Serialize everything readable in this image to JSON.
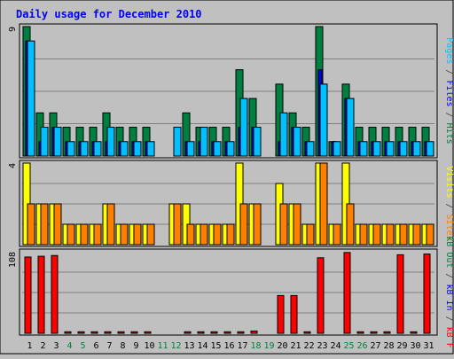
{
  "chart_data": {
    "type": "bar",
    "title": "Daily usage for December 2010",
    "categories": [
      "1",
      "2",
      "3",
      "4",
      "5",
      "6",
      "7",
      "8",
      "9",
      "10",
      "11",
      "12",
      "13",
      "14",
      "15",
      "16",
      "17",
      "18",
      "19",
      "20",
      "21",
      "22",
      "23",
      "24",
      "25",
      "26",
      "27",
      "28",
      "29",
      "30",
      "31"
    ],
    "weekend_days": [
      "4",
      "5",
      "11",
      "12",
      "18",
      "19",
      "25",
      "26"
    ],
    "panels": [
      {
        "id": "top",
        "max_label": "9",
        "ylim": [
          0,
          9
        ],
        "axis_labels": [
          {
            "text": "Pages",
            "color": "#00c0ff"
          },
          {
            "text": " / ",
            "color": "#404040"
          },
          {
            "text": "Files",
            "color": "#0000ff"
          },
          {
            "text": " / ",
            "color": "#404040"
          },
          {
            "text": "Hits",
            "color": "#008040"
          }
        ],
        "series": [
          {
            "name": "Hits",
            "color": "#008040",
            "values": [
              9,
              3,
              3,
              2,
              2,
              2,
              3,
              2,
              2,
              2,
              0,
              0,
              3,
              2,
              2,
              2,
              6,
              4,
              0,
              5,
              3,
              2,
              9,
              1,
              5,
              2,
              2,
              2,
              2,
              2,
              2
            ]
          },
          {
            "name": "Files",
            "color": "#0000ff",
            "values": [
              8,
              1,
              2,
              1,
              1,
              1,
              1,
              1,
              1,
              1,
              0,
              0,
              1,
              1,
              1,
              1,
              2,
              2,
              0,
              1,
              2,
              1,
              6,
              1,
              4,
              1,
              1,
              1,
              1,
              1,
              1
            ]
          },
          {
            "name": "Pages",
            "color": "#00c0ff",
            "values": [
              8,
              2,
              2,
              1,
              1,
              1,
              2,
              1,
              1,
              1,
              0,
              2,
              1,
              2,
              1,
              1,
              4,
              2,
              0,
              3,
              2,
              1,
              5,
              1,
              4,
              1,
              1,
              1,
              1,
              1,
              1
            ]
          }
        ]
      },
      {
        "id": "middle",
        "max_label": "4",
        "ylim": [
          0,
          4
        ],
        "axis_labels": [
          {
            "text": "Visits",
            "color": "#ffff00"
          },
          {
            "text": " / ",
            "color": "#404040"
          },
          {
            "text": "Sites",
            "color": "#ff8000"
          }
        ],
        "series": [
          {
            "name": "Visits",
            "color": "#ffff00",
            "values": [
              4,
              2,
              2,
              1,
              1,
              1,
              2,
              1,
              1,
              1,
              0,
              2,
              2,
              1,
              1,
              1,
              4,
              2,
              0,
              3,
              2,
              1,
              4,
              1,
              4,
              1,
              1,
              1,
              1,
              1,
              1
            ]
          },
          {
            "name": "Sites",
            "color": "#ff8000",
            "values": [
              2,
              2,
              2,
              1,
              1,
              1,
              2,
              1,
              1,
              1,
              0,
              2,
              1,
              1,
              1,
              1,
              2,
              2,
              0,
              2,
              2,
              1,
              4,
              1,
              2,
              1,
              1,
              1,
              1,
              1,
              1
            ]
          }
        ]
      },
      {
        "id": "bottom",
        "max_label": "108",
        "ylim": [
          0,
          108
        ],
        "axis_labels": [
          {
            "text": "kB Out",
            "color": "#008040"
          },
          {
            "text": " / ",
            "color": "#404040"
          },
          {
            "text": "kB In",
            "color": "#0000ff"
          },
          {
            "text": " / ",
            "color": "#404040"
          },
          {
            "text": "kB F",
            "color": "#ff0000"
          }
        ],
        "series": [
          {
            "name": "kB F",
            "color": "#ff0000",
            "values": [
              101,
              102,
              103,
              2,
              2,
              2,
              2,
              2,
              2,
              2,
              0,
              0,
              2,
              2,
              2,
              2,
              2,
              3,
              0,
              50,
              50,
              2,
              100,
              0,
              107,
              2,
              2,
              2,
              104,
              2,
              105
            ]
          }
        ]
      }
    ]
  }
}
